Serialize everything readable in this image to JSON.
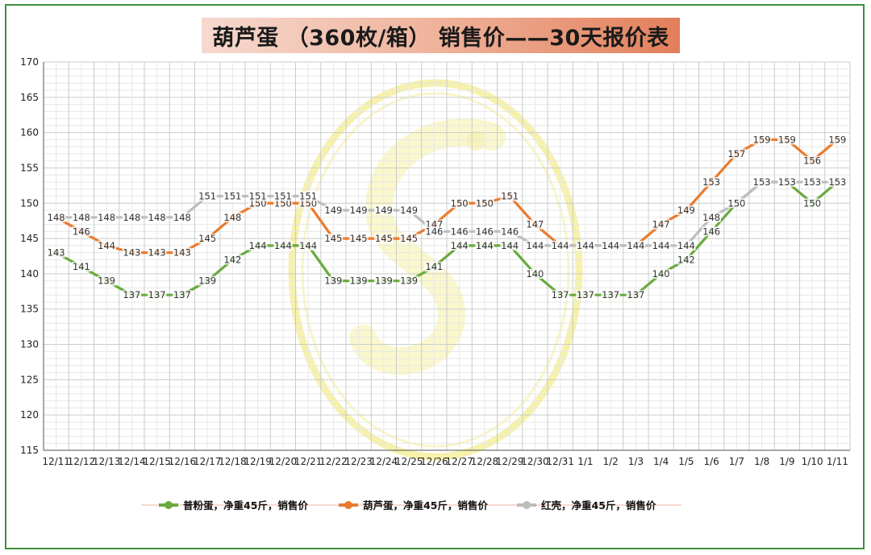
{
  "chart_data": {
    "type": "line",
    "title": "葫芦蛋 （360枚/箱） 销售价——30天报价表",
    "xlabel": "",
    "ylabel": "",
    "ylim": [
      115,
      170
    ],
    "ytick_step": 5,
    "grid": true,
    "legend_position": "bottom",
    "categories": [
      "12/11",
      "12/12",
      "12/13",
      "12/14",
      "12/15",
      "12/16",
      "12/17",
      "12/18",
      "12/19",
      "12/20",
      "12/21",
      "12/22",
      "12/23",
      "12/24",
      "12/25",
      "12/26",
      "12/27",
      "12/28",
      "12/29",
      "12/30",
      "12/31",
      "1/1",
      "1/2",
      "1/3",
      "1/4",
      "1/5",
      "1/6",
      "1/7",
      "1/8",
      "1/9",
      "1/10",
      "1/11"
    ],
    "series": [
      {
        "name": "普粉蛋，净重45斤，销售价",
        "color": "#6aaa3f",
        "values": [
          143,
          141,
          139,
          137,
          137,
          137,
          139,
          142,
          144,
          144,
          144,
          139,
          139,
          139,
          139,
          141,
          144,
          144,
          144,
          140,
          137,
          137,
          137,
          137,
          140,
          142,
          146,
          150,
          153,
          153,
          150,
          153
        ],
        "labels": [
          "143",
          "141",
          "139",
          "137",
          "137",
          "137",
          "139",
          "142",
          "144",
          "144",
          "144",
          "139",
          "139",
          "139",
          "139",
          "141",
          "144",
          "144",
          "144",
          "140",
          "137",
          "137",
          "137",
          "137",
          "140",
          "142",
          "146",
          "150",
          "",
          "",
          "150",
          ""
        ]
      },
      {
        "name": "葫芦蛋，净重45斤，销售价",
        "color": "#ea7b2f",
        "values": [
          148,
          146,
          144,
          143,
          143,
          143,
          145,
          148,
          150,
          150,
          150,
          145,
          145,
          145,
          145,
          147,
          150,
          150,
          151,
          147,
          144,
          144,
          144,
          144,
          147,
          149,
          153,
          157,
          159,
          159,
          156,
          159
        ],
        "labels": [
          "",
          "146",
          "144",
          "143",
          "143",
          "143",
          "145",
          "148",
          "150",
          "150",
          "150",
          "145",
          "145",
          "145",
          "145",
          "147",
          "150",
          "150",
          "151",
          "147",
          "",
          "",
          "",
          "",
          "147",
          "149",
          "153",
          "157",
          "159",
          "159",
          "156",
          "159"
        ]
      },
      {
        "name": "红壳，净重45斤，销售价",
        "color": "#bdbdbd",
        "values": [
          148,
          148,
          148,
          148,
          148,
          148,
          151,
          151,
          151,
          151,
          151,
          149,
          149,
          149,
          149,
          146,
          146,
          146,
          146,
          144,
          144,
          144,
          144,
          144,
          144,
          144,
          148,
          150,
          153,
          153,
          153,
          153
        ],
        "labels": [
          "148",
          "148",
          "148",
          "148",
          "148",
          "148",
          "151",
          "151",
          "151",
          "151",
          "151",
          "149",
          "149",
          "149",
          "149",
          "146",
          "146",
          "146",
          "146",
          "144",
          "144",
          "144",
          "144",
          "144",
          "144",
          "144",
          "148",
          "",
          "153",
          "153",
          "153",
          "153"
        ]
      }
    ]
  }
}
